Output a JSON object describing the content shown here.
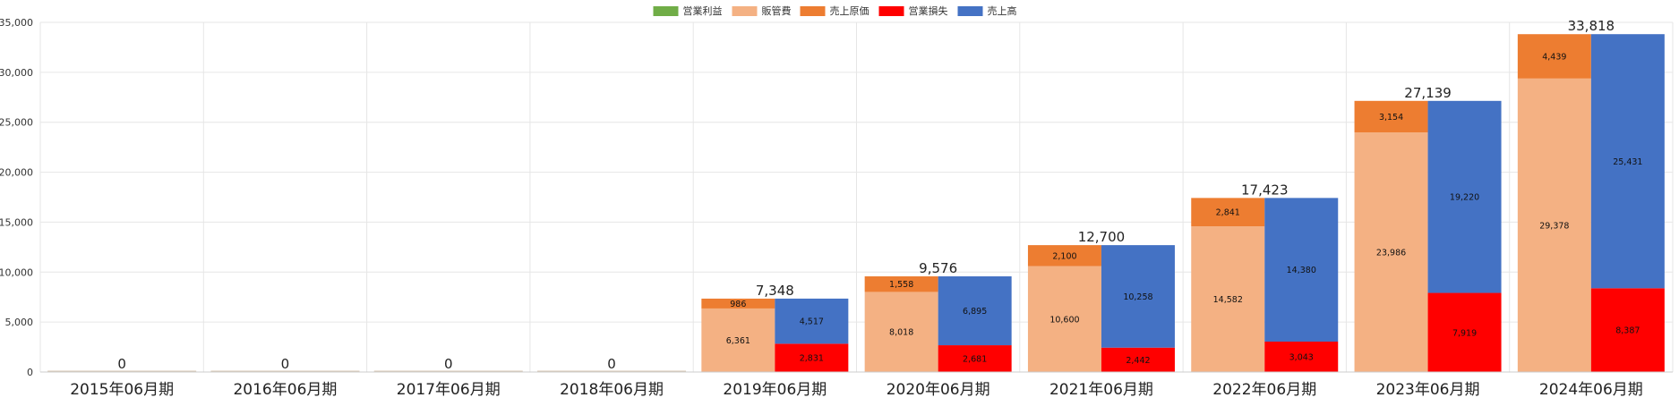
{
  "chart_data": {
    "type": "bar",
    "categories": [
      "2015年06月期",
      "2016年06月期",
      "2017年06月期",
      "2018年06月期",
      "2019年06月期",
      "2020年06月期",
      "2021年06月期",
      "2022年06月期",
      "2023年06月期",
      "2024年06月期"
    ],
    "legend": [
      {
        "key": "operating_profit",
        "label": "営業利益",
        "color": "#70ad47"
      },
      {
        "key": "sga",
        "label": "販管費",
        "color": "#f4b183"
      },
      {
        "key": "cogs",
        "label": "売上原価",
        "color": "#ed7d31"
      },
      {
        "key": "operating_loss",
        "label": "営業損失",
        "color": "#ff0000"
      },
      {
        "key": "sales",
        "label": "売上高",
        "color": "#4472c4"
      }
    ],
    "cost_stack": {
      "sga": [
        0,
        0,
        0,
        0,
        6361,
        8018,
        10600,
        14582,
        23986,
        29378
      ],
      "cogs": [
        0,
        0,
        0,
        0,
        986,
        1558,
        2100,
        2841,
        3154,
        4439
      ]
    },
    "revenue_stack": {
      "operating_loss": [
        0,
        0,
        0,
        0,
        2831,
        2681,
        2442,
        3043,
        7919,
        8387
      ],
      "sales": [
        0,
        0,
        0,
        0,
        4517,
        6895,
        10258,
        14380,
        19220,
        25431
      ]
    },
    "segment_labels": {
      "sga": [
        "",
        "",
        "",
        "",
        "6,361",
        "8,018",
        "10,600",
        "14,582",
        "23,986",
        "29,378"
      ],
      "cogs": [
        "",
        "",
        "",
        "",
        "986",
        "1,558",
        "2,100",
        "2,841",
        "3,154",
        "4,439"
      ],
      "operating_loss": [
        "",
        "",
        "",
        "",
        "2,831",
        "2,681",
        "2,442",
        "3,043",
        "7,919",
        "8,387"
      ],
      "sales": [
        "",
        "",
        "",
        "",
        "4,517",
        "6,895",
        "10,258",
        "14,380",
        "19,220",
        "25,431"
      ]
    },
    "totals": [
      0,
      0,
      0,
      0,
      7348,
      9576,
      12700,
      17423,
      27139,
      33818
    ],
    "total_labels": [
      "0",
      "0",
      "0",
      "0",
      "7,348",
      "9,576",
      "12,700",
      "17,423",
      "27,139",
      "33,818"
    ],
    "y_ticks": [
      0,
      5000,
      10000,
      15000,
      20000,
      25000,
      30000,
      35000
    ],
    "y_tick_labels": [
      "0",
      "5,000",
      "10,000",
      "15,000",
      "20,000",
      "25,000",
      "30,000",
      "35,000"
    ],
    "ylim": [
      0,
      35000
    ],
    "grid": true,
    "legend_position": "top-center"
  }
}
